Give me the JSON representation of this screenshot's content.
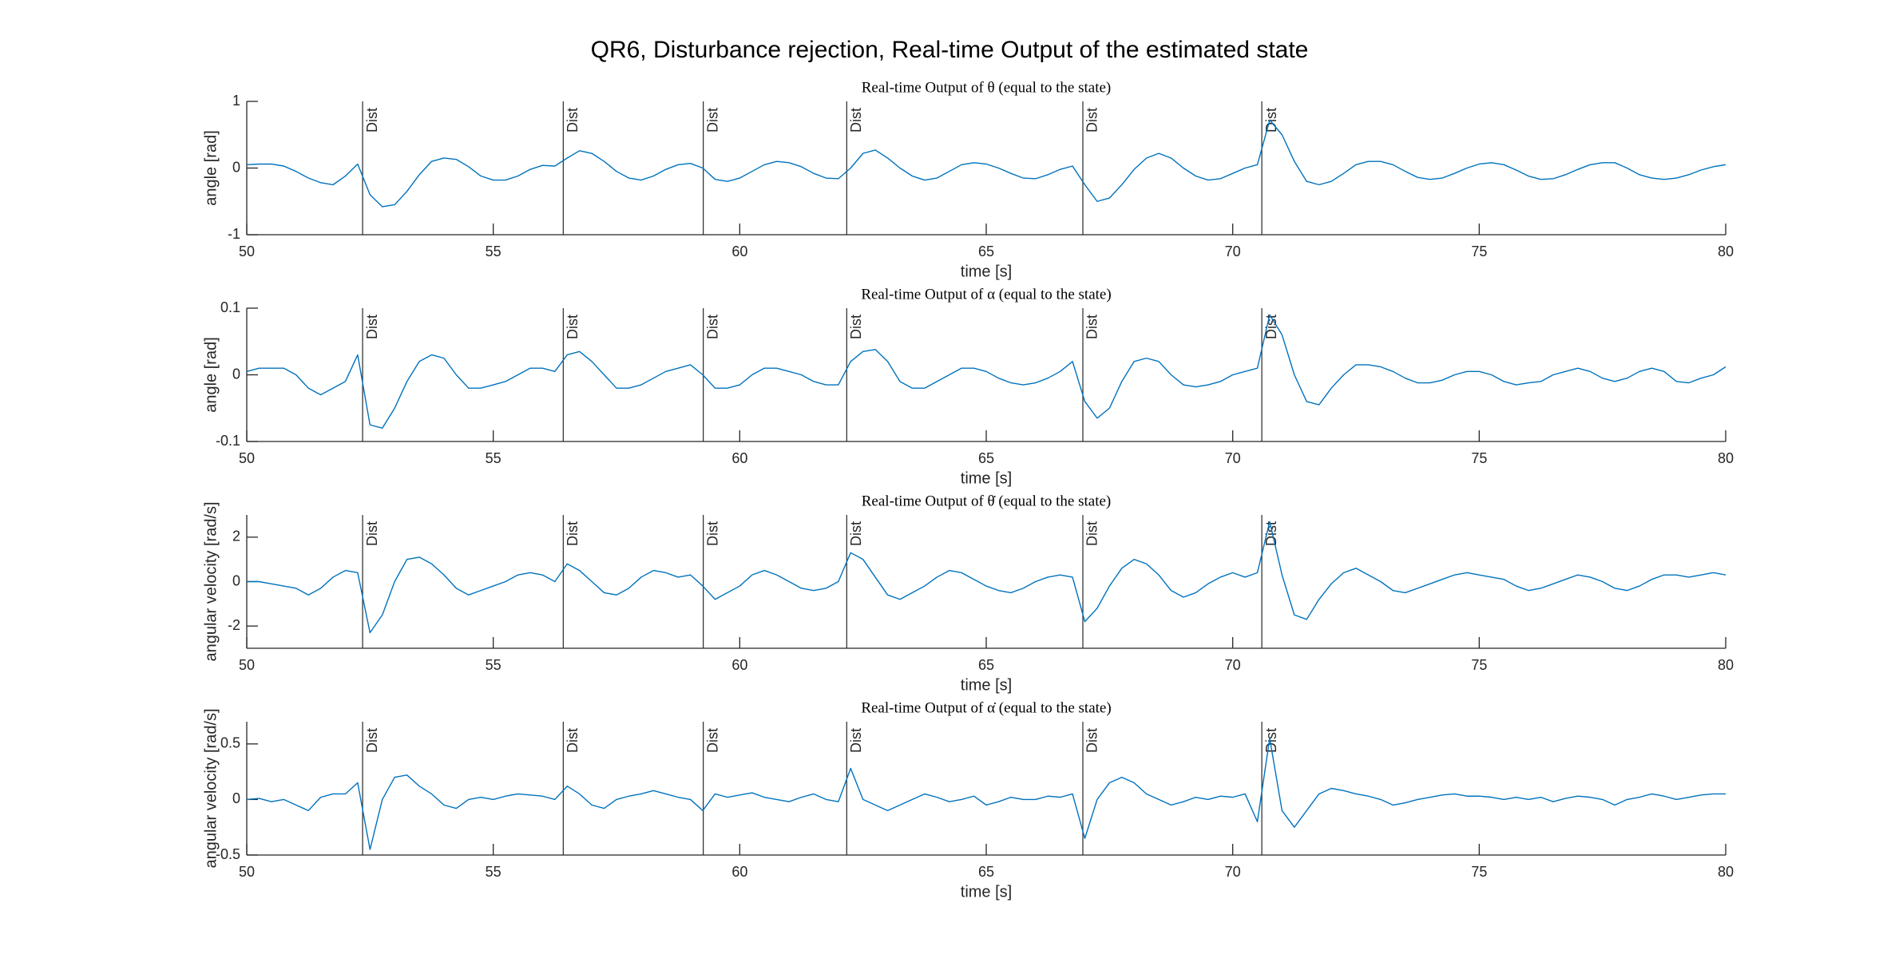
{
  "title": "QR6, Disturbance rejection, Real-time Output of the estimated state",
  "chart_data": [
    {
      "type": "line",
      "title": "Real-time Output of θ (equal to the state)",
      "xlabel": "time [s]",
      "ylabel": "angle [rad]",
      "xlim": [
        50,
        80
      ],
      "xticks": [
        50,
        55,
        60,
        65,
        70,
        75,
        80
      ],
      "ylim": [
        -1,
        1
      ],
      "yticks": [
        -1,
        0,
        1
      ],
      "color": "#0072bd",
      "disturbances": [
        {
          "x": 52.35,
          "label": "Dist"
        },
        {
          "x": 56.42,
          "label": "Dist"
        },
        {
          "x": 59.26,
          "label": "Dist"
        },
        {
          "x": 62.17,
          "label": "Dist"
        },
        {
          "x": 66.96,
          "label": "Dist"
        },
        {
          "x": 70.59,
          "label": "Dist"
        }
      ],
      "x": [
        50,
        50.25,
        50.5,
        50.75,
        51,
        51.25,
        51.5,
        51.75,
        52,
        52.25,
        52.5,
        52.75,
        53,
        53.25,
        53.5,
        53.75,
        54,
        54.25,
        54.5,
        54.75,
        55,
        55.25,
        55.5,
        55.75,
        56,
        56.25,
        56.5,
        56.75,
        57,
        57.25,
        57.5,
        57.75,
        58,
        58.25,
        58.5,
        58.75,
        59,
        59.25,
        59.5,
        59.75,
        60,
        60.25,
        60.5,
        60.75,
        61,
        61.25,
        61.5,
        61.75,
        62,
        62.25,
        62.5,
        62.75,
        63,
        63.25,
        63.5,
        63.75,
        64,
        64.25,
        64.5,
        64.75,
        65,
        65.25,
        65.5,
        65.75,
        66,
        66.25,
        66.5,
        66.75,
        67,
        67.25,
        67.5,
        67.75,
        68,
        68.25,
        68.5,
        68.75,
        69,
        69.25,
        69.5,
        69.75,
        70,
        70.25,
        70.5,
        70.75,
        71,
        71.25,
        71.5,
        71.75,
        72,
        72.25,
        72.5,
        72.75,
        73,
        73.25,
        73.5,
        73.75,
        74,
        74.25,
        74.5,
        74.75,
        75,
        75.25,
        75.5,
        75.75,
        76,
        76.25,
        76.5,
        76.75,
        77,
        77.25,
        77.5,
        77.75,
        78,
        78.25,
        78.5,
        78.75,
        79,
        79.25,
        79.5,
        79.75,
        80
      ],
      "values": [
        0.05,
        0.06,
        0.06,
        0.03,
        -0.05,
        -0.15,
        -0.22,
        -0.25,
        -0.12,
        0.06,
        -0.4,
        -0.58,
        -0.55,
        -0.35,
        -0.1,
        0.1,
        0.15,
        0.13,
        0.02,
        -0.12,
        -0.18,
        -0.18,
        -0.12,
        -0.02,
        0.04,
        0.03,
        0.15,
        0.26,
        0.22,
        0.1,
        -0.05,
        -0.15,
        -0.18,
        -0.12,
        -0.02,
        0.05,
        0.07,
        0.0,
        -0.17,
        -0.2,
        -0.15,
        -0.05,
        0.05,
        0.1,
        0.08,
        0.02,
        -0.08,
        -0.15,
        -0.16,
        0.0,
        0.22,
        0.27,
        0.15,
        0.0,
        -0.12,
        -0.18,
        -0.15,
        -0.05,
        0.05,
        0.08,
        0.06,
        0.0,
        -0.08,
        -0.15,
        -0.16,
        -0.1,
        -0.02,
        0.03,
        -0.25,
        -0.5,
        -0.45,
        -0.25,
        -0.02,
        0.15,
        0.22,
        0.15,
        0.0,
        -0.12,
        -0.18,
        -0.16,
        -0.08,
        0.0,
        0.05,
        0.72,
        0.5,
        0.1,
        -0.2,
        -0.25,
        -0.2,
        -0.08,
        0.05,
        0.1,
        0.1,
        0.05,
        -0.05,
        -0.14,
        -0.17,
        -0.15,
        -0.08,
        0.0,
        0.06,
        0.08,
        0.05,
        -0.03,
        -0.12,
        -0.17,
        -0.16,
        -0.1,
        -0.02,
        0.05,
        0.08,
        0.08,
        0.0,
        -0.1,
        -0.15,
        -0.17,
        -0.15,
        -0.1,
        -0.03,
        0.02,
        0.05
      ]
    },
    {
      "type": "line",
      "title": "Real-time Output of α (equal to the state)",
      "xlabel": "time [s]",
      "ylabel": "angle [rad]",
      "xlim": [
        50,
        80
      ],
      "xticks": [
        50,
        55,
        60,
        65,
        70,
        75,
        80
      ],
      "ylim": [
        -0.1,
        0.1
      ],
      "yticks": [
        -0.1,
        0,
        0.1
      ],
      "color": "#0072bd",
      "disturbances": [
        {
          "x": 52.35,
          "label": "Dist"
        },
        {
          "x": 56.42,
          "label": "Dist"
        },
        {
          "x": 59.26,
          "label": "Dist"
        },
        {
          "x": 62.17,
          "label": "Dist"
        },
        {
          "x": 66.96,
          "label": "Dist"
        },
        {
          "x": 70.59,
          "label": "Dist"
        }
      ],
      "x": [
        50,
        50.25,
        50.5,
        50.75,
        51,
        51.25,
        51.5,
        51.75,
        52,
        52.25,
        52.5,
        52.75,
        53,
        53.25,
        53.5,
        53.75,
        54,
        54.25,
        54.5,
        54.75,
        55,
        55.25,
        55.5,
        55.75,
        56,
        56.25,
        56.5,
        56.75,
        57,
        57.25,
        57.5,
        57.75,
        58,
        58.25,
        58.5,
        58.75,
        59,
        59.25,
        59.5,
        59.75,
        60,
        60.25,
        60.5,
        60.75,
        61,
        61.25,
        61.5,
        61.75,
        62,
        62.25,
        62.5,
        62.75,
        63,
        63.25,
        63.5,
        63.75,
        64,
        64.25,
        64.5,
        64.75,
        65,
        65.25,
        65.5,
        65.75,
        66,
        66.25,
        66.5,
        66.75,
        67,
        67.25,
        67.5,
        67.75,
        68,
        68.25,
        68.5,
        68.75,
        69,
        69.25,
        69.5,
        69.75,
        70,
        70.25,
        70.5,
        70.75,
        71,
        71.25,
        71.5,
        71.75,
        72,
        72.25,
        72.5,
        72.75,
        73,
        73.25,
        73.5,
        73.75,
        74,
        74.25,
        74.5,
        74.75,
        75,
        75.25,
        75.5,
        75.75,
        76,
        76.25,
        76.5,
        76.75,
        77,
        77.25,
        77.5,
        77.75,
        78,
        78.25,
        78.5,
        78.75,
        79,
        79.25,
        79.5,
        79.75,
        80
      ],
      "values": [
        0.005,
        0.01,
        0.01,
        0.01,
        0.0,
        -0.02,
        -0.03,
        -0.02,
        -0.01,
        0.03,
        -0.075,
        -0.08,
        -0.05,
        -0.01,
        0.02,
        0.03,
        0.025,
        0.0,
        -0.02,
        -0.02,
        -0.015,
        -0.01,
        0.0,
        0.01,
        0.01,
        0.005,
        0.03,
        0.035,
        0.02,
        0.0,
        -0.02,
        -0.02,
        -0.015,
        -0.005,
        0.005,
        0.01,
        0.015,
        0.0,
        -0.02,
        -0.02,
        -0.015,
        0.0,
        0.01,
        0.01,
        0.005,
        0.0,
        -0.01,
        -0.015,
        -0.015,
        0.02,
        0.035,
        0.038,
        0.02,
        -0.01,
        -0.02,
        -0.02,
        -0.01,
        0.0,
        0.01,
        0.01,
        0.005,
        -0.005,
        -0.012,
        -0.015,
        -0.012,
        -0.005,
        0.005,
        0.02,
        -0.04,
        -0.065,
        -0.05,
        -0.01,
        0.02,
        0.025,
        0.02,
        0.0,
        -0.015,
        -0.018,
        -0.015,
        -0.01,
        0.0,
        0.005,
        0.01,
        0.09,
        0.06,
        0.0,
        -0.04,
        -0.045,
        -0.02,
        0.0,
        0.015,
        0.015,
        0.012,
        0.005,
        -0.005,
        -0.012,
        -0.012,
        -0.008,
        0.0,
        0.005,
        0.005,
        0.0,
        -0.01,
        -0.015,
        -0.012,
        -0.01,
        0.0,
        0.005,
        0.01,
        0.005,
        -0.005,
        -0.01,
        -0.005,
        0.005,
        0.01,
        0.005,
        -0.01,
        -0.012,
        -0.005,
        0.0,
        0.012
      ]
    },
    {
      "type": "line",
      "title": "Real-time Output of θ̇ (equal to the state)",
      "xlabel": "time [s]",
      "ylabel": "angular velocity [rad/s]",
      "xlim": [
        50,
        80
      ],
      "xticks": [
        50,
        55,
        60,
        65,
        70,
        75,
        80
      ],
      "ylim": [
        -3,
        3
      ],
      "yticks": [
        -2,
        0,
        2
      ],
      "color": "#0072bd",
      "disturbances": [
        {
          "x": 52.35,
          "label": "Dist"
        },
        {
          "x": 56.42,
          "label": "Dist"
        },
        {
          "x": 59.26,
          "label": "Dist"
        },
        {
          "x": 62.17,
          "label": "Dist"
        },
        {
          "x": 66.96,
          "label": "Dist"
        },
        {
          "x": 70.59,
          "label": "Dist"
        }
      ],
      "x": [
        50,
        50.25,
        50.5,
        50.75,
        51,
        51.25,
        51.5,
        51.75,
        52,
        52.25,
        52.5,
        52.75,
        53,
        53.25,
        53.5,
        53.75,
        54,
        54.25,
        54.5,
        54.75,
        55,
        55.25,
        55.5,
        55.75,
        56,
        56.25,
        56.5,
        56.75,
        57,
        57.25,
        57.5,
        57.75,
        58,
        58.25,
        58.5,
        58.75,
        59,
        59.25,
        59.5,
        59.75,
        60,
        60.25,
        60.5,
        60.75,
        61,
        61.25,
        61.5,
        61.75,
        62,
        62.25,
        62.5,
        62.75,
        63,
        63.25,
        63.5,
        63.75,
        64,
        64.25,
        64.5,
        64.75,
        65,
        65.25,
        65.5,
        65.75,
        66,
        66.25,
        66.5,
        66.75,
        67,
        67.25,
        67.5,
        67.75,
        68,
        68.25,
        68.5,
        68.75,
        69,
        69.25,
        69.5,
        69.75,
        70,
        70.25,
        70.5,
        70.75,
        71,
        71.25,
        71.5,
        71.75,
        72,
        72.25,
        72.5,
        72.75,
        73,
        73.25,
        73.5,
        73.75,
        74,
        74.25,
        74.5,
        74.75,
        75,
        75.25,
        75.5,
        75.75,
        76,
        76.25,
        76.5,
        76.75,
        77,
        77.25,
        77.5,
        77.75,
        78,
        78.25,
        78.5,
        78.75,
        79,
        79.25,
        79.5,
        79.75,
        80
      ],
      "values": [
        0.0,
        0.0,
        -0.1,
        -0.2,
        -0.3,
        -0.6,
        -0.3,
        0.2,
        0.5,
        0.4,
        -2.3,
        -1.5,
        0.0,
        1.0,
        1.1,
        0.8,
        0.3,
        -0.3,
        -0.6,
        -0.4,
        -0.2,
        0.0,
        0.3,
        0.4,
        0.3,
        0.0,
        0.8,
        0.5,
        0.0,
        -0.5,
        -0.6,
        -0.3,
        0.2,
        0.5,
        0.4,
        0.2,
        0.3,
        -0.2,
        -0.8,
        -0.5,
        -0.2,
        0.3,
        0.5,
        0.3,
        0.0,
        -0.3,
        -0.4,
        -0.3,
        0.0,
        1.3,
        1.0,
        0.2,
        -0.6,
        -0.8,
        -0.5,
        -0.2,
        0.2,
        0.5,
        0.4,
        0.1,
        -0.2,
        -0.4,
        -0.5,
        -0.3,
        0.0,
        0.2,
        0.3,
        0.2,
        -1.8,
        -1.2,
        -0.2,
        0.6,
        1.0,
        0.8,
        0.3,
        -0.4,
        -0.7,
        -0.5,
        -0.1,
        0.2,
        0.4,
        0.2,
        0.4,
        2.7,
        0.3,
        -1.5,
        -1.7,
        -0.8,
        -0.1,
        0.4,
        0.6,
        0.3,
        0.0,
        -0.4,
        -0.5,
        -0.3,
        -0.1,
        0.1,
        0.3,
        0.4,
        0.3,
        0.2,
        0.1,
        -0.2,
        -0.4,
        -0.3,
        -0.1,
        0.1,
        0.3,
        0.2,
        0.0,
        -0.3,
        -0.4,
        -0.2,
        0.1,
        0.3,
        0.3,
        0.2,
        0.3,
        0.4,
        0.3
      ]
    },
    {
      "type": "line",
      "title": "Real-time Output of α̇ (equal to the state)",
      "xlabel": "time [s]",
      "ylabel": "angular velocity [rad/s]",
      "xlim": [
        50,
        80
      ],
      "xticks": [
        50,
        55,
        60,
        65,
        70,
        75,
        80
      ],
      "ylim": [
        -0.5,
        0.7
      ],
      "yticks": [
        -0.5,
        0,
        0.5
      ],
      "color": "#0072bd",
      "disturbances": [
        {
          "x": 52.35,
          "label": "Dist"
        },
        {
          "x": 56.42,
          "label": "Dist"
        },
        {
          "x": 59.26,
          "label": "Dist"
        },
        {
          "x": 62.17,
          "label": "Dist"
        },
        {
          "x": 66.96,
          "label": "Dist"
        },
        {
          "x": 70.59,
          "label": "Dist"
        }
      ],
      "x": [
        50,
        50.25,
        50.5,
        50.75,
        51,
        51.25,
        51.5,
        51.75,
        52,
        52.25,
        52.5,
        52.75,
        53,
        53.25,
        53.5,
        53.75,
        54,
        54.25,
        54.5,
        54.75,
        55,
        55.25,
        55.5,
        55.75,
        56,
        56.25,
        56.5,
        56.75,
        57,
        57.25,
        57.5,
        57.75,
        58,
        58.25,
        58.5,
        58.75,
        59,
        59.25,
        59.5,
        59.75,
        60,
        60.25,
        60.5,
        60.75,
        61,
        61.25,
        61.5,
        61.75,
        62,
        62.25,
        62.5,
        62.75,
        63,
        63.25,
        63.5,
        63.75,
        64,
        64.25,
        64.5,
        64.75,
        65,
        65.25,
        65.5,
        65.75,
        66,
        66.25,
        66.5,
        66.75,
        67,
        67.25,
        67.5,
        67.75,
        68,
        68.25,
        68.5,
        68.75,
        69,
        69.25,
        69.5,
        69.75,
        70,
        70.25,
        70.5,
        70.75,
        71,
        71.25,
        71.5,
        71.75,
        72,
        72.25,
        72.5,
        72.75,
        73,
        73.25,
        73.5,
        73.75,
        74,
        74.25,
        74.5,
        74.75,
        75,
        75.25,
        75.5,
        75.75,
        76,
        76.25,
        76.5,
        76.75,
        77,
        77.25,
        77.5,
        77.75,
        78,
        78.25,
        78.5,
        78.75,
        79,
        79.25,
        79.5,
        79.75,
        80
      ],
      "values": [
        0.0,
        0.01,
        -0.02,
        0.0,
        -0.05,
        -0.1,
        0.02,
        0.05,
        0.05,
        0.15,
        -0.45,
        0.0,
        0.2,
        0.22,
        0.12,
        0.05,
        -0.05,
        -0.08,
        0.0,
        0.02,
        0.0,
        0.03,
        0.05,
        0.04,
        0.03,
        0.0,
        0.12,
        0.05,
        -0.05,
        -0.08,
        0.0,
        0.03,
        0.05,
        0.08,
        0.05,
        0.02,
        0.0,
        -0.1,
        0.05,
        0.02,
        0.04,
        0.06,
        0.02,
        0.0,
        -0.02,
        0.02,
        0.05,
        0.0,
        -0.02,
        0.28,
        0.0,
        -0.05,
        -0.1,
        -0.05,
        0.0,
        0.05,
        0.02,
        -0.02,
        0.0,
        0.03,
        -0.05,
        -0.02,
        0.02,
        0.0,
        0.0,
        0.03,
        0.02,
        0.05,
        -0.35,
        0.0,
        0.15,
        0.2,
        0.15,
        0.05,
        0.0,
        -0.05,
        -0.02,
        0.02,
        0.0,
        0.03,
        0.02,
        0.05,
        -0.2,
        0.55,
        -0.1,
        -0.25,
        -0.1,
        0.05,
        0.1,
        0.08,
        0.05,
        0.03,
        0.0,
        -0.05,
        -0.03,
        0.0,
        0.02,
        0.04,
        0.05,
        0.03,
        0.03,
        0.02,
        0.0,
        0.02,
        0.0,
        0.02,
        -0.02,
        0.01,
        0.03,
        0.02,
        0.0,
        -0.05,
        0.0,
        0.02,
        0.05,
        0.03,
        0.0,
        0.02,
        0.04,
        0.05,
        0.05
      ]
    }
  ]
}
